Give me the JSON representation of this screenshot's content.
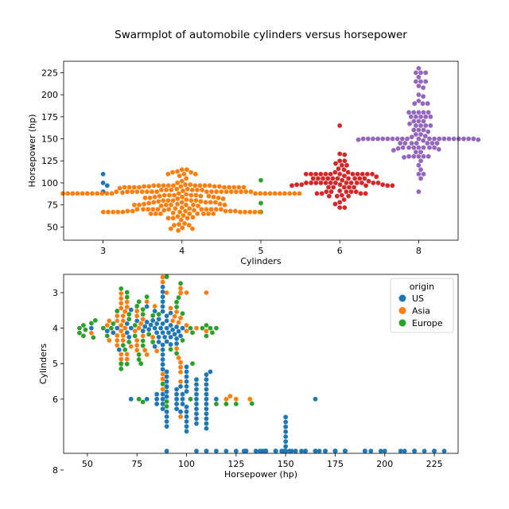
{
  "title": "Swarmplot of automobile cylinders versus horsepower",
  "chart_data": [
    {
      "type": "scatter",
      "subtype": "swarm",
      "orientation": "vertical",
      "xlabel": "Cylinders",
      "ylabel": "Horsepower (hp)",
      "categories": [
        "3",
        "4",
        "5",
        "6",
        "8"
      ],
      "yticks": [
        50,
        75,
        100,
        125,
        150,
        175,
        200,
        225
      ],
      "ylim": [
        35,
        238
      ],
      "grid": false,
      "colors": {
        "3": "#1f77b4",
        "4": "#ff7f0e",
        "5": "#2ca02c",
        "6": "#d62728",
        "8": "#9467bd"
      },
      "groups": [
        {
          "cylinders": "3",
          "values": [
            90,
            97,
            100,
            110
          ]
        },
        {
          "cylinders": "5",
          "values": [
            67,
            77,
            103
          ]
        },
        {
          "cylinders": "4",
          "values": [
            46,
            48,
            48,
            49,
            52,
            52,
            53,
            54,
            58,
            60,
            60,
            60,
            61,
            62,
            63,
            65,
            65,
            65,
            65,
            65,
            65,
            65,
            65,
            66,
            67,
            67,
            67,
            67,
            67,
            67,
            67,
            67,
            67,
            67,
            67,
            68,
            68,
            68,
            68,
            68,
            68,
            69,
            69,
            70,
            70,
            70,
            70,
            70,
            70,
            70,
            70,
            70,
            70,
            70,
            71,
            71,
            72,
            74,
            74,
            75,
            75,
            75,
            75,
            75,
            75,
            75,
            76,
            76,
            76,
            77,
            78,
            78,
            78,
            78,
            78,
            79,
            79,
            80,
            80,
            80,
            80,
            80,
            81,
            82,
            82,
            83,
            83,
            83,
            84,
            84,
            84,
            85,
            85,
            85,
            86,
            86,
            86,
            86,
            86,
            87,
            88,
            88,
            88,
            88,
            88,
            88,
            88,
            88,
            88,
            88,
            88,
            88,
            88,
            88,
            88,
            88,
            88,
            88,
            88,
            88,
            88,
            88,
            89,
            90,
            90,
            90,
            90,
            90,
            90,
            90,
            90,
            90,
            90,
            90,
            90,
            90,
            90,
            90,
            90,
            90,
            90,
            91,
            92,
            92,
            92,
            92,
            92,
            92,
            93,
            93,
            94,
            95,
            95,
            95,
            95,
            95,
            95,
            95,
            95,
            95,
            96,
            96,
            96,
            96,
            96,
            97,
            97,
            97,
            97,
            97,
            97,
            97,
            97,
            97,
            98,
            98,
            100,
            102,
            105,
            108,
            110,
            110,
            110,
            112,
            112,
            113,
            115,
            115
          ]
        },
        {
          "cylinders": "6",
          "values": [
            72,
            72,
            76,
            78,
            81,
            85,
            85,
            85,
            86,
            88,
            88,
            88,
            88,
            90,
            90,
            90,
            90,
            90,
            91,
            95,
            95,
            95,
            95,
            95,
            97,
            97,
            97,
            97,
            98,
            98,
            98,
            98,
            100,
            100,
            100,
            100,
            100,
            100,
            100,
            100,
            100,
            100,
            100,
            100,
            100,
            102,
            103,
            105,
            105,
            105,
            105,
            105,
            105,
            105,
            105,
            105,
            105,
            107,
            108,
            110,
            110,
            110,
            110,
            110,
            110,
            110,
            110,
            110,
            110,
            110,
            110,
            112,
            112,
            115,
            116,
            120,
            120,
            122,
            125,
            125,
            132,
            133,
            165
          ]
        },
        {
          "cylinders": "8",
          "values": [
            90,
            105,
            110,
            110,
            115,
            120,
            125,
            129,
            130,
            130,
            130,
            130,
            130,
            135,
            135,
            137,
            138,
            139,
            140,
            140,
            140,
            140,
            140,
            140,
            140,
            145,
            145,
            145,
            145,
            145,
            145,
            145,
            148,
            149,
            149,
            150,
            150,
            150,
            150,
            150,
            150,
            150,
            150,
            150,
            150,
            150,
            150,
            150,
            150,
            150,
            150,
            150,
            150,
            150,
            150,
            150,
            152,
            153,
            155,
            155,
            158,
            160,
            160,
            160,
            165,
            165,
            165,
            165,
            167,
            170,
            170,
            170,
            175,
            175,
            175,
            175,
            175,
            180,
            180,
            180,
            180,
            180,
            190,
            190,
            190,
            193,
            198,
            200,
            208,
            210,
            215,
            215,
            215,
            220,
            225,
            225,
            225,
            230
          ]
        }
      ]
    },
    {
      "type": "scatter",
      "subtype": "swarm",
      "orientation": "horizontal",
      "xlabel": "Horsepower (hp)",
      "ylabel": "Cylinders",
      "xticks": [
        50,
        75,
        100,
        125,
        150,
        175,
        200,
        225
      ],
      "xlim": [
        38,
        237
      ],
      "yticks": [
        3,
        4,
        5,
        6,
        8
      ],
      "grid": false,
      "legend": {
        "title": "origin",
        "placement": "upper right",
        "entries": [
          "US",
          "Asia",
          "Europe"
        ]
      },
      "colors": {
        "US": "#1f77b4",
        "Asia": "#ff7f0e",
        "Europe": "#2ca02c"
      },
      "groups": [
        {
          "cylinders": 3,
          "origin": "Asia",
          "values": [
            90,
            97,
            100,
            110
          ]
        },
        {
          "cylinders": 5,
          "origin": "Europe",
          "values": [
            67,
            77,
            103
          ]
        },
        {
          "cylinders": 4,
          "origin": "US",
          "values": [
            52,
            60,
            63,
            65,
            66,
            70,
            70,
            71,
            72,
            72,
            75,
            78,
            79,
            80,
            80,
            81,
            82,
            83,
            84,
            84,
            84,
            85,
            85,
            86,
            86,
            86,
            87,
            88,
            88,
            88,
            88,
            88,
            88,
            88,
            88,
            88,
            88,
            88,
            88,
            88,
            88,
            89,
            90,
            90,
            90,
            90,
            90,
            90,
            90,
            90,
            90,
            90,
            91,
            92,
            92,
            92,
            92,
            93,
            94,
            95,
            95,
            95,
            96,
            97,
            98
          ]
        },
        {
          "cylinders": 4,
          "origin": "Asia",
          "values": [
            52,
            60,
            61,
            61,
            65,
            65,
            65,
            65,
            65,
            67,
            67,
            67,
            67,
            67,
            67,
            67,
            67,
            68,
            68,
            68,
            68,
            69,
            69,
            70,
            70,
            70,
            70,
            72,
            74,
            75,
            75,
            75,
            75,
            75,
            76,
            77,
            78,
            78,
            79,
            80,
            80,
            83,
            84,
            85,
            88,
            88,
            88,
            88,
            90,
            92,
            93,
            94,
            95,
            95,
            96,
            96,
            97,
            97,
            97,
            97,
            97,
            97,
            100,
            100,
            105,
            110
          ]
        },
        {
          "cylinders": 4,
          "origin": "Europe",
          "values": [
            46,
            46,
            48,
            48,
            49,
            52,
            53,
            54,
            58,
            60,
            62,
            63,
            65,
            67,
            67,
            67,
            68,
            69,
            70,
            70,
            70,
            71,
            71,
            71,
            74,
            74,
            75,
            76,
            76,
            76,
            78,
            78,
            78,
            78,
            80,
            81,
            83,
            83,
            86,
            88,
            90,
            90,
            90,
            92,
            95,
            95,
            95,
            96,
            97,
            98,
            98,
            102,
            103,
            108,
            110,
            110,
            112,
            113,
            115
          ]
        },
        {
          "cylinders": 6,
          "origin": "US",
          "values": [
            72,
            80,
            85,
            85,
            85,
            88,
            88,
            88,
            88,
            90,
            90,
            90,
            90,
            90,
            90,
            90,
            90,
            95,
            95,
            95,
            95,
            95,
            97,
            97,
            98,
            98,
            98,
            100,
            100,
            100,
            100,
            100,
            100,
            100,
            100,
            100,
            100,
            100,
            100,
            105,
            105,
            105,
            105,
            105,
            105,
            105,
            105,
            105,
            105,
            110,
            110,
            110,
            110,
            110,
            110,
            110,
            110,
            110,
            110,
            110,
            110,
            112,
            115,
            165
          ]
        },
        {
          "cylinders": 6,
          "origin": "Asia",
          "values": [
            88,
            97,
            97,
            120,
            122,
            125,
            132
          ]
        },
        {
          "cylinders": 6,
          "origin": "Europe",
          "values": [
            76,
            78,
            102,
            115,
            120,
            125,
            133
          ]
        },
        {
          "cylinders": 8,
          "origin": "US",
          "values": [
            90,
            105,
            110,
            110,
            115,
            120,
            125,
            129,
            130,
            130,
            130,
            130,
            130,
            135,
            135,
            137,
            138,
            139,
            140,
            140,
            140,
            140,
            140,
            140,
            140,
            145,
            145,
            145,
            145,
            145,
            145,
            145,
            148,
            149,
            149,
            150,
            150,
            150,
            150,
            150,
            150,
            150,
            150,
            150,
            150,
            150,
            150,
            150,
            150,
            150,
            150,
            150,
            150,
            150,
            150,
            150,
            152,
            153,
            155,
            155,
            158,
            160,
            160,
            160,
            165,
            165,
            165,
            165,
            167,
            170,
            170,
            170,
            175,
            175,
            175,
            175,
            175,
            180,
            180,
            180,
            180,
            180,
            190,
            190,
            190,
            193,
            198,
            200,
            208,
            210,
            215,
            215,
            215,
            220,
            225,
            225,
            225,
            230
          ]
        }
      ]
    }
  ]
}
